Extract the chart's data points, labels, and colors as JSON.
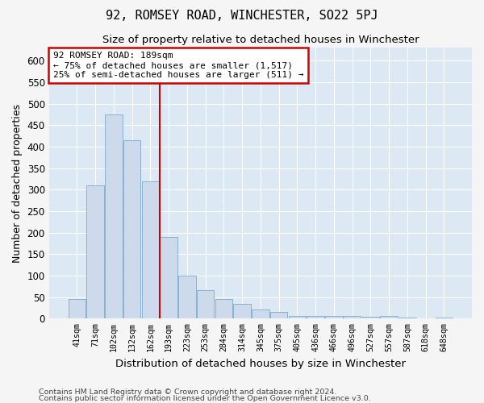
{
  "title": "92, ROMSEY ROAD, WINCHESTER, SO22 5PJ",
  "subtitle": "Size of property relative to detached houses in Winchester",
  "xlabel": "Distribution of detached houses by size in Winchester",
  "ylabel": "Number of detached properties",
  "bar_color": "#ccdaeb",
  "bar_edge_color": "#7aabcc",
  "background_color": "#dce9f5",
  "grid_color": "#ffffff",
  "fig_background": "#f5f5f5",
  "categories": [
    "41sqm",
    "71sqm",
    "102sqm",
    "132sqm",
    "162sqm",
    "193sqm",
    "223sqm",
    "253sqm",
    "284sqm",
    "314sqm",
    "345sqm",
    "375sqm",
    "405sqm",
    "436sqm",
    "466sqm",
    "496sqm",
    "527sqm",
    "557sqm",
    "587sqm",
    "618sqm",
    "648sqm"
  ],
  "values": [
    46,
    310,
    475,
    415,
    320,
    190,
    100,
    67,
    45,
    35,
    22,
    15,
    7,
    7,
    7,
    6,
    4,
    6,
    2,
    1,
    2
  ],
  "annotation_text": "92 ROMSEY ROAD: 189sqm\n← 75% of detached houses are smaller (1,517)\n25% of semi-detached houses are larger (511) →",
  "footnote1": "Contains HM Land Registry data © Crown copyright and database right 2024.",
  "footnote2": "Contains public sector information licensed under the Open Government Licence v3.0.",
  "ylim": [
    0,
    630
  ],
  "yticks": [
    0,
    50,
    100,
    150,
    200,
    250,
    300,
    350,
    400,
    450,
    500,
    550,
    600
  ],
  "red_line_color": "#cc0000",
  "box_edge_color": "#cc0000",
  "red_line_x": 4.5
}
